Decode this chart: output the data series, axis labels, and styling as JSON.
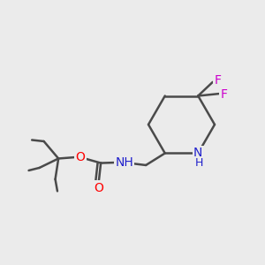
{
  "bg_color": "#ebebeb",
  "bond_color": "#4a4a4a",
  "bond_lw": 1.8,
  "atom_colors": {
    "O": "#ff0000",
    "N": "#2020cc",
    "F": "#cc00cc",
    "NH": "#2020cc",
    "H": "#2020cc"
  },
  "font_size": 10,
  "font_size_small": 9
}
